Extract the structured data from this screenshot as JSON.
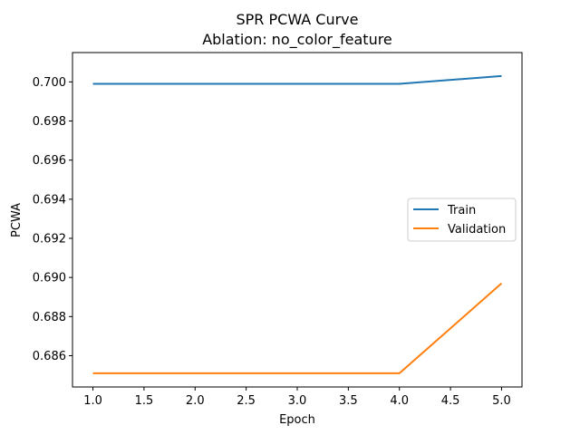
{
  "chart_data": {
    "type": "line",
    "title": "SPR PCWA Curve",
    "subtitle": "Ablation: no_color_feature",
    "xlabel": "Epoch",
    "ylabel": "PCWA",
    "x": [
      1,
      2,
      3,
      4,
      5
    ],
    "xlim": [
      0.8,
      5.2
    ],
    "ylim": [
      0.6844,
      0.7015
    ],
    "xticks": [
      1.0,
      1.5,
      2.0,
      2.5,
      3.0,
      3.5,
      4.0,
      4.5,
      5.0
    ],
    "xtick_labels": [
      "1.0",
      "1.5",
      "2.0",
      "2.5",
      "3.0",
      "3.5",
      "4.0",
      "4.5",
      "5.0"
    ],
    "yticks": [
      0.686,
      0.688,
      0.69,
      0.692,
      0.694,
      0.696,
      0.698,
      0.7
    ],
    "ytick_labels": [
      "0.686",
      "0.688",
      "0.690",
      "0.692",
      "0.694",
      "0.696",
      "0.698",
      "0.700"
    ],
    "grid": false,
    "legend_position": "center-right",
    "series": [
      {
        "name": "Train",
        "color": "#1f77b4",
        "values": [
          0.6999,
          0.6999,
          0.6999,
          0.6999,
          0.7003
        ]
      },
      {
        "name": "Validation",
        "color": "#ff7f0e",
        "values": [
          0.6851,
          0.6851,
          0.6851,
          0.6851,
          0.6897
        ]
      }
    ]
  }
}
